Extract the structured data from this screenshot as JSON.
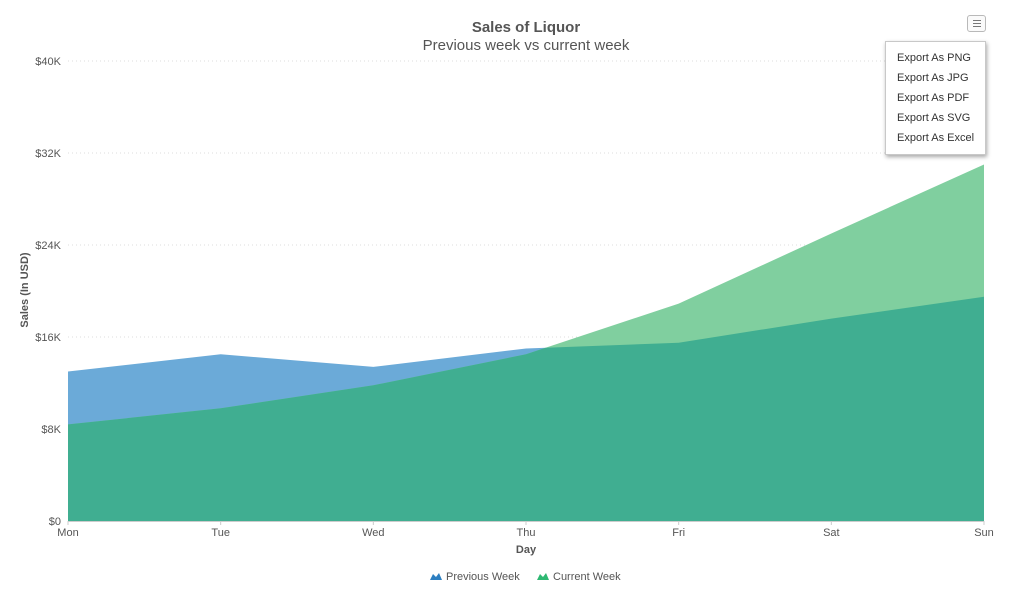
{
  "chart_data": {
    "type": "area",
    "title": "Sales of Liquor",
    "subtitle": "Previous week vs current week",
    "xlabel": "Day",
    "ylabel": "Sales (In USD)",
    "categories": [
      "Mon",
      "Tue",
      "Wed",
      "Thu",
      "Fri",
      "Sat",
      "Sun"
    ],
    "ylim": [
      0,
      40000
    ],
    "yticks": [
      0,
      8000,
      16000,
      24000,
      32000,
      40000
    ],
    "ytick_labels": [
      "$0",
      "$8K",
      "$16K",
      "$24K",
      "$32K",
      "$40K"
    ],
    "grid": true,
    "legend_position": "bottom-center",
    "series": [
      {
        "name": "Previous Week",
        "color": "#6BAAD8",
        "values": [
          13000,
          14500,
          13400,
          15000,
          15500,
          17600,
          19500
        ]
      },
      {
        "name": "Current Week",
        "color": "#2EB872",
        "values": [
          8400,
          9800,
          11800,
          14500,
          18900,
          25000,
          31000
        ]
      }
    ],
    "overlap_color": "#40AE91"
  },
  "export_menu": {
    "items": [
      "Export As PNG",
      "Export As JPG",
      "Export As PDF",
      "Export As SVG",
      "Export As Excel"
    ],
    "active_index": 4
  },
  "menu_icon": "hamburger-icon"
}
